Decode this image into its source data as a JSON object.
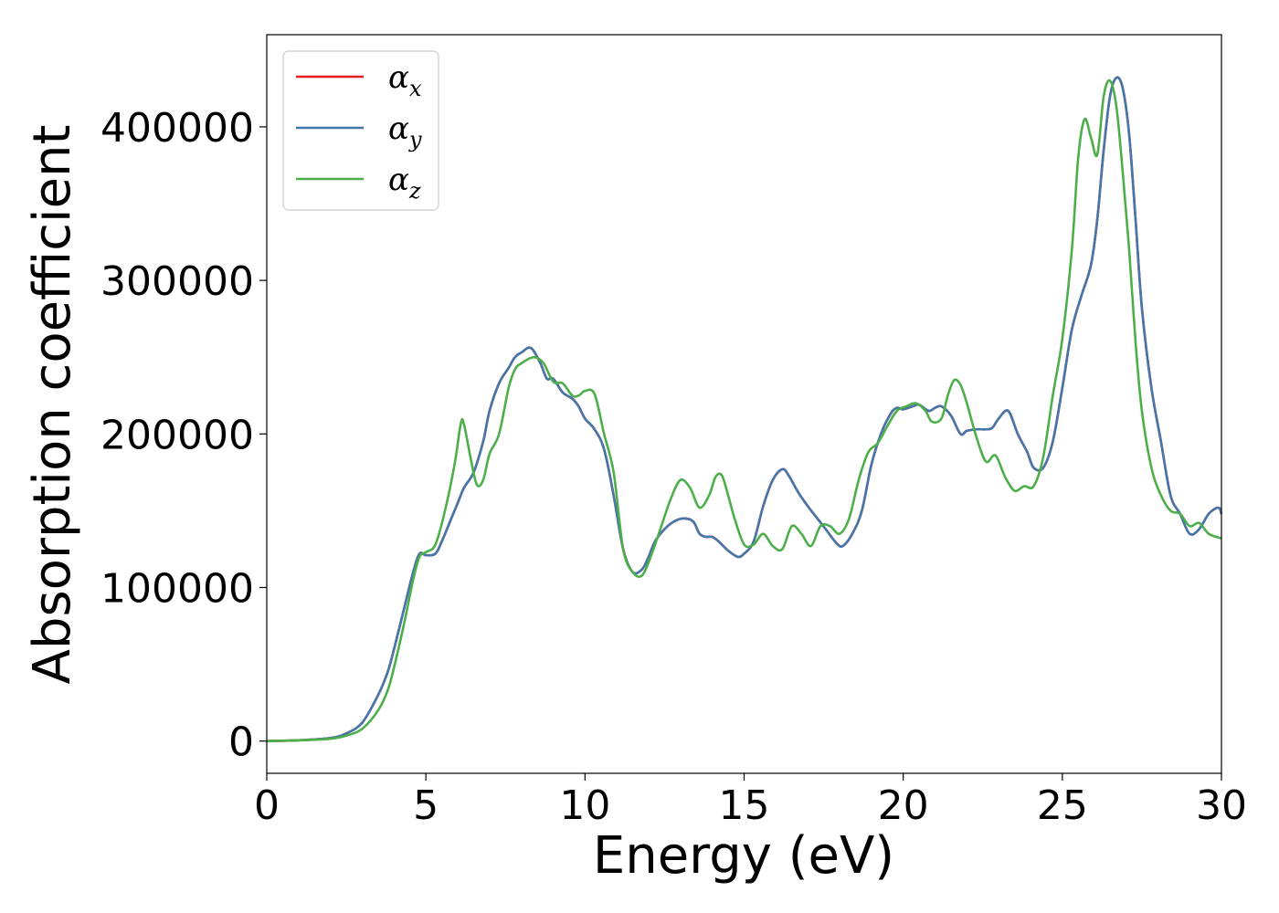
{
  "chart_data": {
    "type": "line",
    "title": "",
    "xlabel": "Energy (eV)",
    "ylabel": "Absorption coefficient",
    "xlim": [
      0,
      30
    ],
    "ylim": [
      -21000,
      460000
    ],
    "xticks": [
      0,
      5,
      10,
      15,
      20,
      25,
      30
    ],
    "xtick_labels": [
      "0",
      "5",
      "10",
      "15",
      "20",
      "25",
      "30"
    ],
    "yticks": [
      0,
      100000,
      200000,
      300000,
      400000
    ],
    "ytick_labels": [
      "0",
      "100000",
      "200000",
      "300000",
      "400000"
    ],
    "grid": false,
    "legend_position": "top-left",
    "series": [
      {
        "name": "αx",
        "symbol": "α",
        "subscript": "x",
        "color": "#e41a1c",
        "x": [
          0,
          1,
          2,
          2.5,
          3,
          3.5,
          3.8,
          4,
          4.3,
          4.6,
          4.8,
          5,
          5.3,
          5.5,
          5.8,
          6,
          6.2,
          6.5,
          6.8,
          7,
          7.3,
          7.6,
          7.8,
          8,
          8.3,
          8.6,
          8.8,
          9,
          9.3,
          9.6,
          9.8,
          10,
          10.3,
          10.6,
          10.9,
          11.2,
          11.5,
          11.8,
          12,
          12.2,
          12.5,
          12.8,
          13.1,
          13.4,
          13.6,
          13.8,
          14,
          14.2,
          14.5,
          14.8,
          15,
          15.3,
          15.6,
          15.9,
          16.2,
          16.4,
          16.7,
          17,
          17.3,
          17.6,
          17.9,
          18.1,
          18.4,
          18.7,
          19,
          19.3,
          19.6,
          19.8,
          20,
          20.3,
          20.5,
          20.8,
          21,
          21.2,
          21.5,
          21.8,
          22,
          22.3,
          22.6,
          22.8,
          23,
          23.3,
          23.6,
          23.9,
          24.1,
          24.4,
          24.7,
          25,
          25.3,
          25.6,
          25.9,
          26.1,
          26.3,
          26.5,
          26.7,
          26.9,
          27.1,
          27.3,
          27.5,
          27.8,
          28.1,
          28.4,
          28.7,
          29,
          29.3,
          29.6,
          29.9,
          30
        ],
        "y": [
          0,
          500,
          2000,
          5000,
          12000,
          30000,
          45000,
          60000,
          85000,
          110000,
          122000,
          121000,
          122000,
          130000,
          145000,
          155000,
          165000,
          175000,
          195000,
          215000,
          233000,
          243000,
          250000,
          253000,
          256000,
          246000,
          236000,
          236000,
          227000,
          223000,
          218000,
          210000,
          203000,
          190000,
          160000,
          125000,
          110000,
          112000,
          120000,
          130000,
          138000,
          143000,
          145000,
          143000,
          135000,
          133000,
          133000,
          130000,
          124000,
          120000,
          122000,
          130000,
          153000,
          170000,
          177000,
          173000,
          162000,
          153000,
          145000,
          137000,
          129000,
          127000,
          135000,
          150000,
          180000,
          200000,
          213000,
          217000,
          216000,
          218000,
          219000,
          215000,
          217000,
          218000,
          212000,
          200000,
          202000,
          203000,
          203000,
          204000,
          210000,
          215000,
          200000,
          188000,
          178000,
          178000,
          195000,
          230000,
          268000,
          290000,
          310000,
          340000,
          385000,
          420000,
          432000,
          425000,
          395000,
          340000,
          282000,
          230000,
          195000,
          160000,
          148000,
          135000,
          138000,
          148000,
          152000,
          148000
        ]
      },
      {
        "name": "αy",
        "symbol": "α",
        "subscript": "y",
        "color": "#4477aa",
        "x": [
          0,
          1,
          2,
          2.5,
          3,
          3.5,
          3.8,
          4,
          4.3,
          4.6,
          4.8,
          5,
          5.3,
          5.5,
          5.8,
          6,
          6.2,
          6.5,
          6.8,
          7,
          7.3,
          7.6,
          7.8,
          8,
          8.3,
          8.6,
          8.8,
          9,
          9.3,
          9.6,
          9.8,
          10,
          10.3,
          10.6,
          10.9,
          11.2,
          11.5,
          11.8,
          12,
          12.2,
          12.5,
          12.8,
          13.1,
          13.4,
          13.6,
          13.8,
          14,
          14.2,
          14.5,
          14.8,
          15,
          15.3,
          15.6,
          15.9,
          16.2,
          16.4,
          16.7,
          17,
          17.3,
          17.6,
          17.9,
          18.1,
          18.4,
          18.7,
          19,
          19.3,
          19.6,
          19.8,
          20,
          20.3,
          20.5,
          20.8,
          21,
          21.2,
          21.5,
          21.8,
          22,
          22.3,
          22.6,
          22.8,
          23,
          23.3,
          23.6,
          23.9,
          24.1,
          24.4,
          24.7,
          25,
          25.3,
          25.6,
          25.9,
          26.1,
          26.3,
          26.5,
          26.7,
          26.9,
          27.1,
          27.3,
          27.5,
          27.8,
          28.1,
          28.4,
          28.7,
          29,
          29.3,
          29.6,
          29.9,
          30
        ],
        "y": [
          0,
          500,
          2000,
          5000,
          12000,
          30000,
          45000,
          60000,
          85000,
          110000,
          122000,
          121000,
          122000,
          130000,
          145000,
          155000,
          165000,
          175000,
          195000,
          215000,
          233000,
          243000,
          250000,
          253000,
          256000,
          246000,
          236000,
          236000,
          227000,
          223000,
          218000,
          210000,
          203000,
          190000,
          160000,
          125000,
          110000,
          112000,
          120000,
          130000,
          138000,
          143000,
          145000,
          143000,
          135000,
          133000,
          133000,
          130000,
          124000,
          120000,
          122000,
          130000,
          153000,
          170000,
          177000,
          173000,
          162000,
          153000,
          145000,
          137000,
          129000,
          127000,
          135000,
          150000,
          180000,
          200000,
          213000,
          217000,
          216000,
          218000,
          219000,
          215000,
          217000,
          218000,
          212000,
          200000,
          202000,
          203000,
          203000,
          204000,
          210000,
          215000,
          200000,
          188000,
          178000,
          178000,
          195000,
          230000,
          268000,
          290000,
          310000,
          340000,
          385000,
          420000,
          432000,
          425000,
          395000,
          340000,
          282000,
          230000,
          195000,
          160000,
          148000,
          135000,
          138000,
          148000,
          152000,
          148000
        ]
      },
      {
        "name": "αz",
        "symbol": "α",
        "subscript": "z",
        "color": "#4daf4a",
        "x": [
          0,
          1,
          2,
          2.5,
          3,
          3.5,
          3.8,
          4,
          4.3,
          4.6,
          4.8,
          5,
          5.3,
          5.6,
          5.9,
          6.1,
          6.2,
          6.4,
          6.6,
          6.8,
          7,
          7.3,
          7.6,
          7.8,
          8,
          8.4,
          8.7,
          9,
          9.3,
          9.6,
          9.8,
          10,
          10.3,
          10.6,
          10.9,
          11.2,
          11.5,
          11.8,
          12.1,
          12.4,
          12.7,
          13,
          13.3,
          13.6,
          13.9,
          14.1,
          14.3,
          14.5,
          14.7,
          15,
          15.3,
          15.6,
          15.9,
          16.2,
          16.5,
          16.8,
          17.1,
          17.4,
          17.7,
          18,
          18.3,
          18.6,
          18.9,
          19.2,
          19.5,
          19.8,
          20.1,
          20.4,
          20.7,
          20.9,
          21.2,
          21.4,
          21.6,
          21.8,
          22,
          22.3,
          22.6,
          22.9,
          23.2,
          23.5,
          23.8,
          24.1,
          24.4,
          24.7,
          25,
          25.3,
          25.5,
          25.7,
          25.9,
          26.1,
          26.3,
          26.5,
          26.7,
          26.9,
          27.1,
          27.3,
          27.5,
          27.8,
          28.1,
          28.4,
          28.7,
          29,
          29.3,
          29.6,
          30
        ],
        "y": [
          0,
          500,
          1500,
          3500,
          8000,
          20000,
          33000,
          48000,
          75000,
          105000,
          120000,
          123000,
          128000,
          150000,
          180000,
          207000,
          206000,
          185000,
          167000,
          170000,
          187000,
          200000,
          230000,
          242000,
          246000,
          250000,
          246000,
          234000,
          233000,
          225000,
          225000,
          228000,
          226000,
          200000,
          175000,
          125000,
          110000,
          108000,
          122000,
          140000,
          158000,
          170000,
          165000,
          152000,
          160000,
          172000,
          173000,
          160000,
          145000,
          128000,
          128000,
          135000,
          127000,
          125000,
          140000,
          135000,
          127000,
          140000,
          140000,
          135000,
          145000,
          170000,
          188000,
          194000,
          205000,
          215000,
          218000,
          220000,
          215000,
          208000,
          210000,
          225000,
          235000,
          232000,
          220000,
          198000,
          182000,
          186000,
          172000,
          163000,
          166000,
          166000,
          185000,
          225000,
          262000,
          320000,
          380000,
          405000,
          393000,
          382000,
          420000,
          430000,
          413000,
          370000,
          320000,
          260000,
          215000,
          178000,
          160000,
          150000,
          148000,
          140000,
          142000,
          135000,
          132000
        ]
      }
    ]
  }
}
